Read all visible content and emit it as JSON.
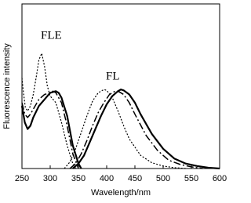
{
  "chart_data": {
    "type": "line",
    "x_label": "Wavelength/nm",
    "y_label": "Fluorescence intensity",
    "annotations": [
      "FLE",
      "FL"
    ],
    "xlim": [
      250,
      600
    ],
    "xticks": [
      250,
      300,
      350,
      400,
      450,
      500,
      550,
      600
    ],
    "ylim": [
      0,
      100
    ],
    "series": [
      {
        "color": "#000000",
        "dash": "none",
        "width": 2.2,
        "x": [
          250,
          255,
          260,
          265,
          270,
          280,
          290,
          300,
          310,
          315,
          320,
          330,
          340,
          350,
          355
        ],
        "values": [
          38,
          28,
          24,
          26,
          31,
          38,
          42,
          46,
          47,
          46,
          43,
          32,
          14,
          3,
          0
        ]
      },
      {
        "color": "#000000",
        "dash": "none",
        "width": 2.2,
        "x": [
          340,
          350,
          360,
          370,
          380,
          390,
          400,
          410,
          420,
          425,
          430,
          440,
          450,
          460,
          480,
          500,
          520,
          540,
          560,
          580,
          600
        ],
        "values": [
          0,
          3,
          8,
          16,
          24,
          32,
          39,
          44,
          47,
          48,
          47.5,
          45,
          40,
          33,
          21,
          12,
          6,
          3,
          1.5,
          0.5,
          0
        ]
      },
      {
        "color": "#000000",
        "dash": "9 3 2 3",
        "width": 1.5,
        "x": [
          250,
          255,
          260,
          265,
          270,
          280,
          290,
          300,
          305,
          310,
          320,
          330,
          340,
          350
        ],
        "values": [
          40,
          33,
          31,
          33,
          36,
          42,
          45,
          46,
          47,
          46,
          40,
          26,
          9,
          0
        ]
      },
      {
        "color": "#000000",
        "dash": "9 3 2 3",
        "width": 1.5,
        "x": [
          335,
          345,
          355,
          365,
          375,
          385,
          395,
          405,
          415,
          420,
          430,
          440,
          450,
          470,
          490,
          510,
          530,
          550,
          570
        ],
        "values": [
          0,
          3,
          9,
          17,
          26,
          34,
          40,
          45,
          47,
          47,
          45,
          40,
          33,
          20,
          11,
          5,
          2.5,
          1,
          0
        ]
      },
      {
        "color": "#000000",
        "dash": "2 2",
        "width": 1.2,
        "x": [
          250,
          253,
          256,
          260,
          265,
          270,
          275,
          280,
          285,
          290,
          295,
          300,
          310,
          320,
          330,
          340,
          345
        ],
        "values": [
          55,
          45,
          37,
          35,
          38,
          45,
          55,
          66,
          70,
          62,
          50,
          44,
          40,
          28,
          14,
          3,
          0
        ]
      },
      {
        "color": "#000000",
        "dash": "2 2",
        "width": 1.2,
        "x": [
          325,
          335,
          345,
          355,
          365,
          375,
          385,
          395,
          400,
          410,
          420,
          430,
          440,
          460,
          480,
          500,
          520,
          540
        ],
        "values": [
          0,
          4,
          12,
          22,
          32,
          41,
          46,
          48,
          47.5,
          43,
          35,
          26,
          18,
          8,
          3.5,
          1.5,
          0.5,
          0
        ]
      }
    ]
  }
}
